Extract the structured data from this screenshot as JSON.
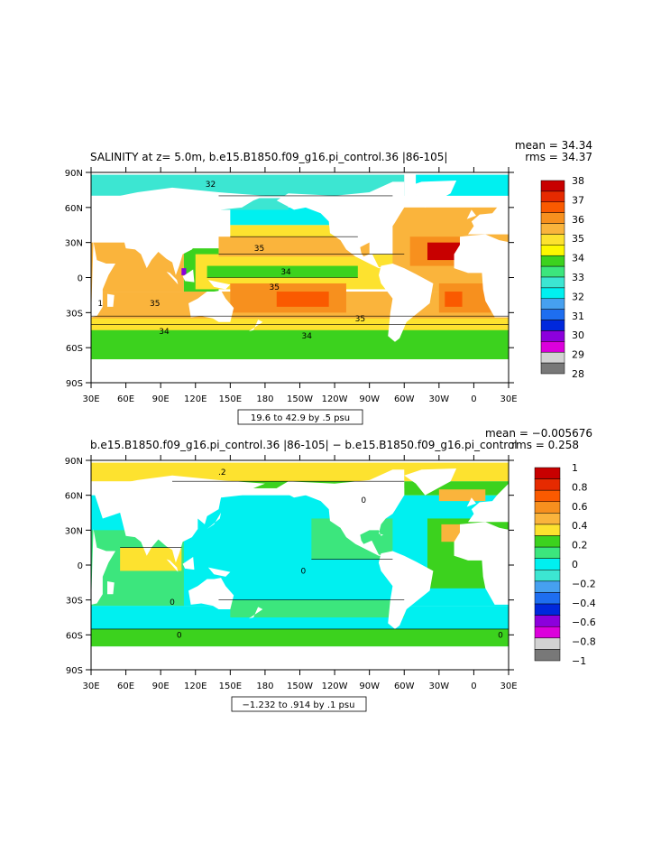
{
  "colors": {
    "background": "#ffffff",
    "frame": "#000000",
    "land": "#ffffff"
  },
  "chart_data": [
    {
      "type": "heatmap",
      "title": "SALINITY at z=    5.0m, b.e15.B1850.f09_g16.pi_control.36  |86-105|",
      "stats": {
        "mean": "mean = 34.34",
        "rms": "rms = 34.37"
      },
      "range_note": "19.6 to 42.9 by .5 psu",
      "xlim": [
        30,
        390
      ],
      "ylim": [
        -90,
        90
      ],
      "x_ticks": [
        "30E",
        "60E",
        "90E",
        "120E",
        "150E",
        "180",
        "150W",
        "120W",
        "90W",
        "60W",
        "30W",
        "0",
        "30E"
      ],
      "y_ticks": [
        "90N",
        "60N",
        "30N",
        "0",
        "30S",
        "60S",
        "90S"
      ],
      "colorbar": {
        "labels": [
          "38",
          "37",
          "36",
          "35",
          "34",
          "33",
          "32",
          "31",
          "30",
          "29",
          "28"
        ],
        "colors": [
          "#c80000",
          "#e62a00",
          "#fa5a00",
          "#f7901e",
          "#fab43c",
          "#fde22f",
          "#fdf800",
          "#3cd21e",
          "#3ce67d",
          "#3ce6d2",
          "#00f0f0",
          "#46a0f0",
          "#1e6ef0",
          "#0028dc",
          "#8c00dc",
          "#dc00dc",
          "#d2d2d2",
          "#787878"
        ]
      },
      "contour_labels": [
        {
          "text": "32",
          "lon": 133,
          "lat": 80
        },
        {
          "text": "35",
          "lon": 175,
          "lat": 25
        },
        {
          "text": "34",
          "lon": 198,
          "lat": 5
        },
        {
          "text": "35",
          "lon": 188,
          "lat": -8
        },
        {
          "text": "35",
          "lon": 85,
          "lat": -22
        },
        {
          "text": "35",
          "lon": 262,
          "lat": -35
        },
        {
          "text": "34",
          "lon": 93,
          "lat": -46
        },
        {
          "text": "34",
          "lon": 216,
          "lat": -50
        },
        {
          "text": "1",
          "lon": 38,
          "lat": -22
        }
      ]
    },
    {
      "type": "heatmap",
      "title": "b.e15.B1850.f09_g16.pi_control.36  |86-105|  −  b.e15.B1850.f09_g16.pi_control",
      "stats": {
        "mean": "mean = −0.005676",
        "rms": "rms = 0.258"
      },
      "range_note": "−1.232 to .914 by .1 psu",
      "xlim": [
        30,
        390
      ],
      "ylim": [
        -90,
        90
      ],
      "x_ticks": [
        "30E",
        "60E",
        "90E",
        "120E",
        "150E",
        "180",
        "150W",
        "120W",
        "90W",
        "60W",
        "30W",
        "0",
        "30E"
      ],
      "y_ticks": [
        "90N",
        "60N",
        "30N",
        "0",
        "30S",
        "60S",
        "90S"
      ],
      "colorbar": {
        "labels": [
          "1",
          "0.8",
          "0.6",
          "0.4",
          "0.2",
          "0",
          "−0.2",
          "−0.4",
          "−0.6",
          "−0.8",
          "−1"
        ],
        "colors": [
          "#c80000",
          "#e62a00",
          "#fa5a00",
          "#f7901e",
          "#fab43c",
          "#fde22f",
          "#3cd21e",
          "#3ce67d",
          "#00f0f0",
          "#3ce6d2",
          "#46a0f0",
          "#1e6ef0",
          "#0028dc",
          "#8c00dc",
          "#dc00dc",
          "#d2d2d2",
          "#787878"
        ]
      },
      "contour_labels": [
        {
          "text": ".2",
          "lon": 143,
          "lat": 80
        },
        {
          "text": "0",
          "lon": 213,
          "lat": -5
        },
        {
          "text": "0",
          "lon": 106,
          "lat": -60
        },
        {
          "text": "0",
          "lon": 383,
          "lat": -60
        },
        {
          "text": "0",
          "lon": 100,
          "lat": -32
        },
        {
          "text": "0",
          "lon": 265,
          "lat": 56
        }
      ]
    }
  ]
}
